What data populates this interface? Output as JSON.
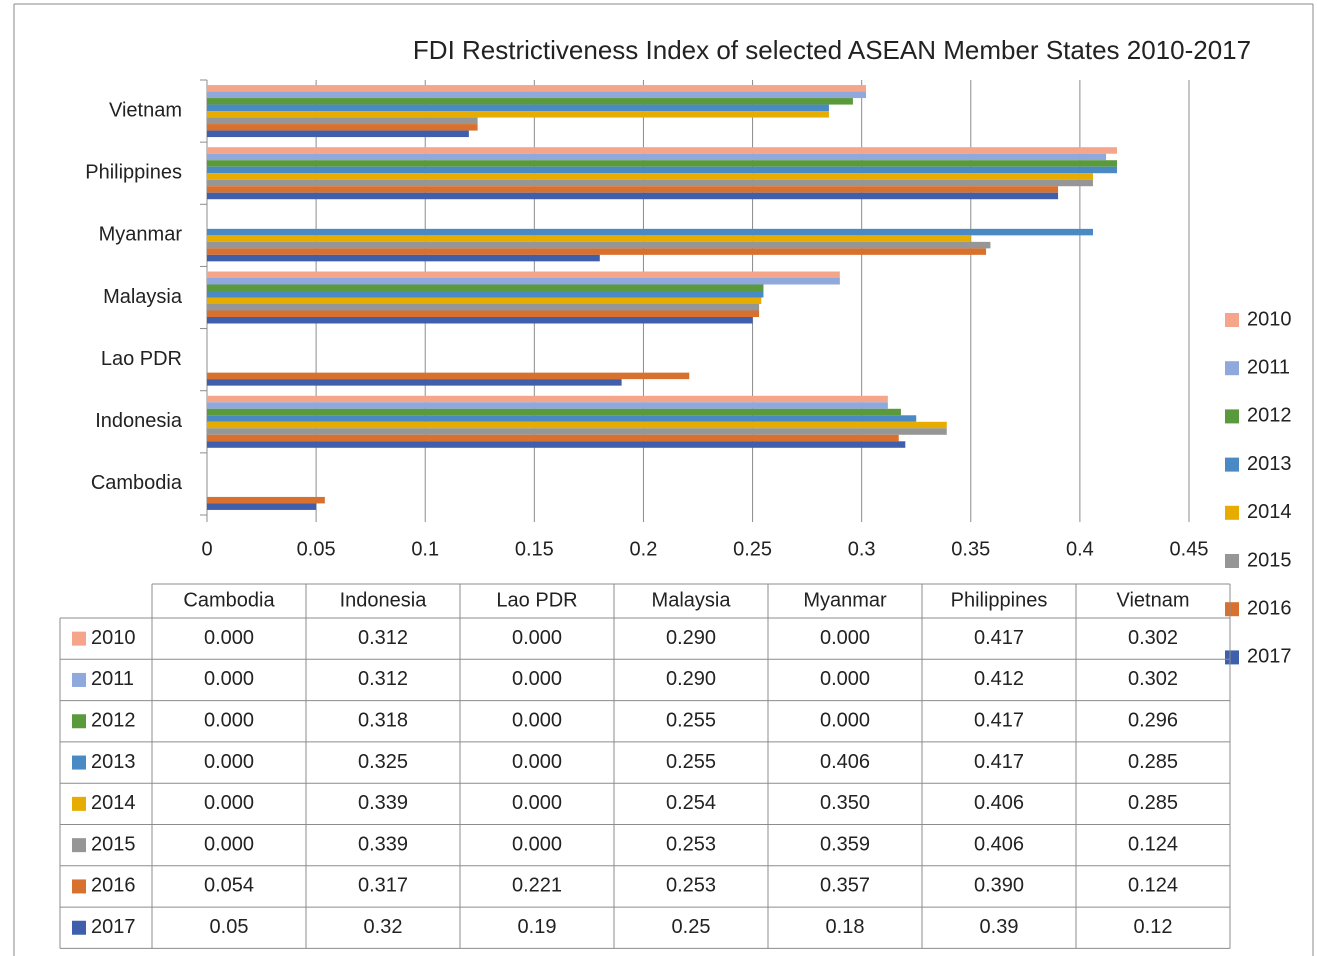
{
  "chart_data": {
    "type": "bar",
    "orientation": "horizontal",
    "title": "FDI Restrictiveness Index of selected ASEAN Member States 2010-2017",
    "categories": [
      "Cambodia",
      "Indonesia",
      "Lao PDR",
      "Malaysia",
      "Myanmar",
      "Philippines",
      "Vietnam"
    ],
    "series": [
      {
        "name": "2010",
        "color": "#f4a58a",
        "values": [
          0,
          0.312,
          0,
          0.29,
          0,
          0.417,
          0.302
        ],
        "value_labels": [
          "0.000",
          "0.312",
          "0.000",
          "0.290",
          "0.000",
          "0.417",
          "0.302"
        ]
      },
      {
        "name": "2011",
        "color": "#8fa9dc",
        "values": [
          0,
          0.312,
          0,
          0.29,
          0,
          0.412,
          0.302
        ],
        "value_labels": [
          "0.000",
          "0.312",
          "0.000",
          "0.290",
          "0.000",
          "0.412",
          "0.302"
        ]
      },
      {
        "name": "2012",
        "color": "#5a9a3c",
        "values": [
          0,
          0.318,
          0,
          0.255,
          0,
          0.417,
          0.296
        ],
        "value_labels": [
          "0.000",
          "0.318",
          "0.000",
          "0.255",
          "0.000",
          "0.417",
          "0.296"
        ]
      },
      {
        "name": "2013",
        "color": "#4a8ac4",
        "values": [
          0,
          0.325,
          0,
          0.255,
          0.406,
          0.417,
          0.285
        ],
        "value_labels": [
          "0.000",
          "0.325",
          "0.000",
          "0.255",
          "0.406",
          "0.417",
          "0.285"
        ]
      },
      {
        "name": "2014",
        "color": "#e6ac00",
        "values": [
          0,
          0.339,
          0,
          0.254,
          0.35,
          0.406,
          0.285
        ],
        "value_labels": [
          "0.000",
          "0.339",
          "0.000",
          "0.254",
          "0.350",
          "0.406",
          "0.285"
        ]
      },
      {
        "name": "2015",
        "color": "#969696",
        "values": [
          0,
          0.339,
          0,
          0.253,
          0.359,
          0.406,
          0.124
        ],
        "value_labels": [
          "0.000",
          "0.339",
          "0.000",
          "0.253",
          "0.359",
          "0.406",
          "0.124"
        ]
      },
      {
        "name": "2016",
        "color": "#d8702e",
        "values": [
          0.054,
          0.317,
          0.221,
          0.253,
          0.357,
          0.39,
          0.124
        ],
        "value_labels": [
          "0.054",
          "0.317",
          "0.221",
          "0.253",
          "0.357",
          "0.390",
          "0.124"
        ]
      },
      {
        "name": "2017",
        "color": "#3f5fad",
        "values": [
          0.05,
          0.32,
          0.19,
          0.25,
          0.18,
          0.39,
          0.12
        ],
        "value_labels": [
          "0.05",
          "0.32",
          "0.19",
          "0.25",
          "0.18",
          "0.39",
          "0.12"
        ]
      }
    ],
    "xlim": [
      0,
      0.45
    ],
    "xticks": [
      0,
      0.05,
      0.1,
      0.15,
      0.2,
      0.25,
      0.3,
      0.35,
      0.4,
      0.45
    ],
    "grid": true,
    "legend": "right",
    "data_table": true
  }
}
